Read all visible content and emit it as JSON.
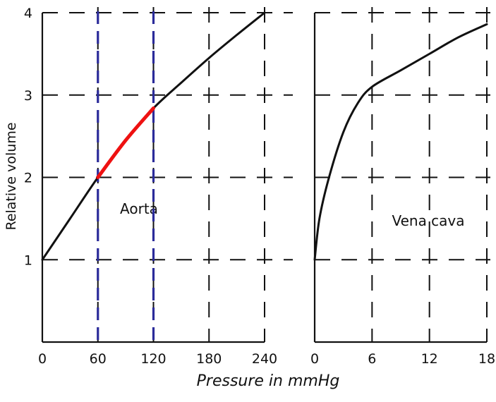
{
  "chart_data": [
    {
      "type": "line",
      "name_label": "Aorta",
      "xlabel": "Pressure in mmHg",
      "ylabel": "Relative volume",
      "xlim": [
        0,
        240
      ],
      "ylim": [
        0,
        4
      ],
      "x_ticks": [
        "0",
        "60",
        "120",
        "180",
        "240"
      ],
      "x_tick_values": [
        0,
        60,
        120,
        180,
        240
      ],
      "y_ticks": [
        "1",
        "2",
        "3",
        "4"
      ],
      "y_tick_values": [
        1,
        2,
        3,
        4
      ],
      "grid": true,
      "series": [
        {
          "x": [
            0,
            30,
            60,
            90,
            120,
            150,
            180,
            210,
            240
          ],
          "y": [
            1.0,
            1.5,
            2.0,
            2.45,
            2.84,
            3.15,
            3.45,
            3.73,
            4.0
          ],
          "color": "#111111"
        }
      ],
      "highlight": {
        "x_range": [
          60,
          120
        ],
        "color": "#ee1111"
      },
      "reference_lines_x": [
        60,
        120
      ],
      "reference_color": "#2b2b9a"
    },
    {
      "type": "line",
      "name_label": "Vena cava",
      "xlim": [
        0,
        18
      ],
      "ylim": [
        0,
        4
      ],
      "x_ticks": [
        "0",
        "6",
        "12",
        "18"
      ],
      "x_tick_values": [
        0,
        6,
        12,
        18
      ],
      "grid": true,
      "series": [
        {
          "x": [
            0,
            0.5,
            1.5,
            3,
            4.5,
            6,
            9,
            12,
            15,
            18
          ],
          "y": [
            1.0,
            1.5,
            2.0,
            2.55,
            2.9,
            3.1,
            3.3,
            3.5,
            3.7,
            3.86
          ],
          "color": "#111111"
        }
      ]
    }
  ]
}
